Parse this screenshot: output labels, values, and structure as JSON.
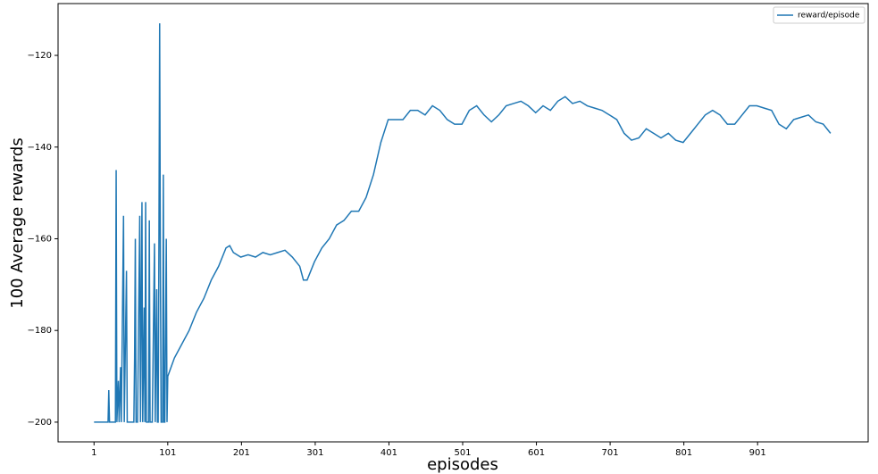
{
  "chart_data": {
    "type": "line",
    "xlabel": "episodes",
    "ylabel": "100 Average rewards",
    "x": [
      1,
      20,
      21,
      22,
      30,
      31,
      32,
      34,
      35,
      37,
      38,
      41,
      42,
      45,
      46,
      55,
      56,
      57,
      58,
      60,
      63,
      64,
      66,
      67,
      69,
      70,
      71,
      72,
      75,
      76,
      77,
      80,
      83,
      84,
      86,
      87,
      88,
      89,
      90,
      91,
      92,
      94,
      95,
      96,
      97,
      99,
      100,
      101,
      110,
      120,
      130,
      140,
      150,
      160,
      170,
      180,
      185,
      190,
      200,
      210,
      220,
      230,
      240,
      250,
      260,
      270,
      280,
      285,
      290,
      300,
      310,
      320,
      330,
      340,
      350,
      360,
      370,
      380,
      390,
      400,
      410,
      420,
      430,
      440,
      450,
      460,
      470,
      480,
      490,
      500,
      510,
      520,
      530,
      540,
      550,
      560,
      570,
      580,
      590,
      600,
      610,
      620,
      630,
      640,
      650,
      660,
      670,
      680,
      690,
      700,
      710,
      720,
      730,
      740,
      750,
      760,
      770,
      780,
      790,
      800,
      810,
      820,
      830,
      840,
      850,
      860,
      870,
      880,
      890,
      900,
      910,
      920,
      930,
      940,
      950,
      960,
      970,
      980,
      990,
      1000
    ],
    "series": [
      {
        "name": "reward/episode",
        "color": "#1f77b4",
        "values": [
          -200,
          -200,
          -193,
          -200,
          -200,
          -145,
          -200,
          -191,
          -200,
          -188,
          -200,
          -155,
          -200,
          -167,
          -200,
          -200,
          -186,
          -160,
          -200,
          -200,
          -155,
          -200,
          -152,
          -200,
          -175,
          -200,
          -152,
          -200,
          -200,
          -156,
          -200,
          -200,
          -161,
          -200,
          -171,
          -200,
          -200,
          -161,
          -113,
          -166,
          -200,
          -200,
          -146,
          -200,
          -200,
          -160,
          -200,
          -190,
          -186,
          -183,
          -180,
          -176,
          -173,
          -169,
          -166,
          -162,
          -161.5,
          -163,
          -164,
          -163.5,
          -164,
          -163,
          -163.5,
          -163,
          -162.5,
          -164,
          -166,
          -169,
          -169,
          -165,
          -162,
          -160,
          -157,
          -156,
          -154,
          -154,
          -151,
          -146,
          -139,
          -134,
          -134,
          -134,
          -132,
          -132,
          -133,
          -131,
          -132,
          -134,
          -135,
          -135,
          -132,
          -131,
          -133,
          -134.5,
          -133,
          -131,
          -130.5,
          -130,
          -131,
          -132.5,
          -131,
          -132,
          -130,
          -129,
          -130.5,
          -130,
          -131,
          -131.5,
          -132,
          -133,
          -134,
          -137,
          -138.5,
          -138,
          -136,
          -137,
          -138,
          -137,
          -138.5,
          -139,
          -137,
          -135,
          -133,
          -132,
          -133,
          -135,
          -135,
          -133,
          -131,
          -131,
          -131.5,
          -132,
          -135,
          -136,
          -134,
          -133.5,
          -133,
          -134.5,
          -135,
          -137
        ]
      }
    ],
    "xlim": [
      -47.8,
      1051
    ],
    "ylim": [
      -204.3,
      -108.7
    ],
    "xticks": [
      1,
      101,
      201,
      301,
      401,
      501,
      601,
      701,
      801,
      901
    ],
    "yticks": [
      {
        "value": -200,
        "label": "−200"
      },
      {
        "value": -180,
        "label": "−180"
      },
      {
        "value": -160,
        "label": "−160"
      },
      {
        "value": -140,
        "label": "−140"
      },
      {
        "value": -120,
        "label": "−120"
      }
    ],
    "legend": "upper right"
  }
}
